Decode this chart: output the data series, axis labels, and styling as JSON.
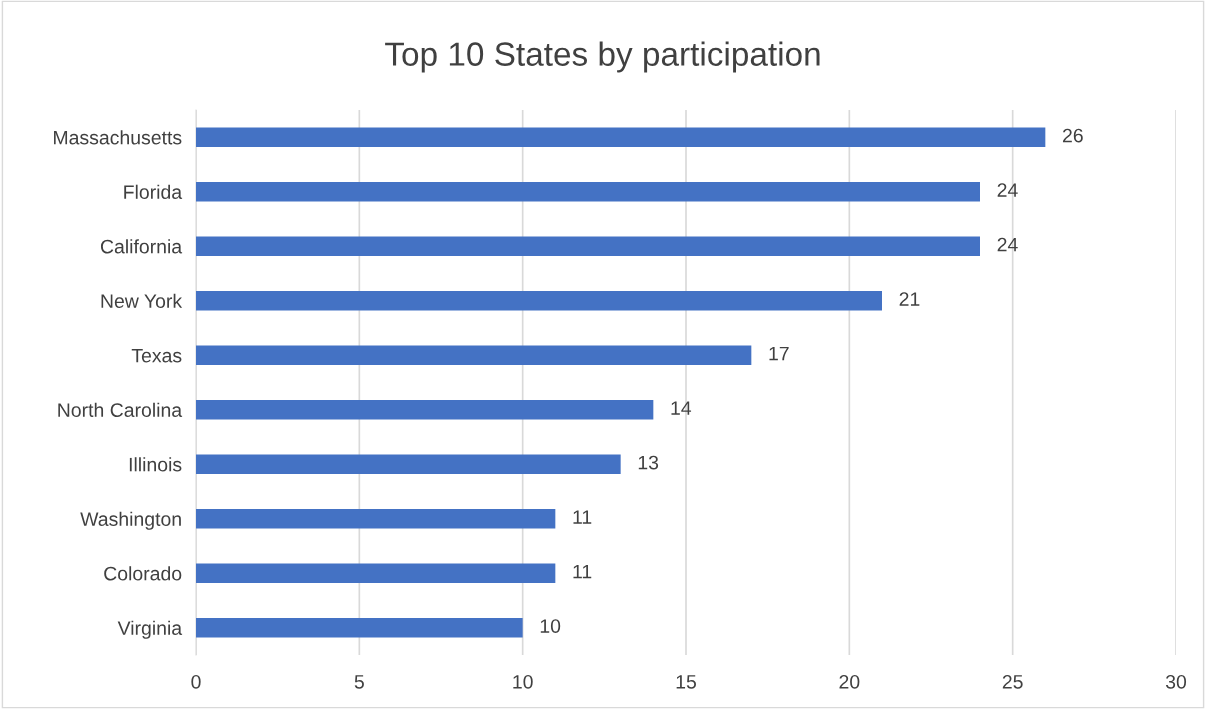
{
  "chart_data": {
    "type": "bar",
    "orientation": "horizontal",
    "title": "Top 10 States by participation",
    "categories": [
      "Massachusetts",
      "Florida",
      "California",
      "New York",
      "Texas",
      "North Carolina",
      "Illinois",
      "Washington",
      "Colorado",
      "Virginia"
    ],
    "values": [
      26,
      24,
      24,
      21,
      17,
      14,
      13,
      11,
      11,
      10
    ],
    "color": "#4472c4",
    "xlim": [
      0,
      30
    ],
    "xticks": [
      0,
      5,
      10,
      15,
      20,
      25,
      30
    ],
    "grid": "x",
    "data_labels": true,
    "legend": false
  }
}
